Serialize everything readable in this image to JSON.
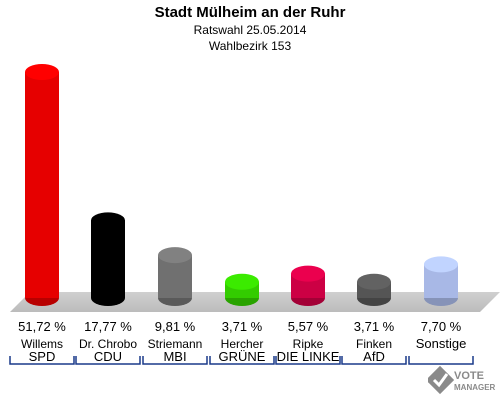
{
  "header": {
    "title": "Stadt Mülheim an der Ruhr",
    "subtitle": "Ratswahl 25.05.2014",
    "district": "Wahlbezirk 153"
  },
  "chart_data": {
    "type": "bar",
    "title": "Stadt Mülheim an der Ruhr",
    "subtitle": "Ratswahl 25.05.2014 · Wahlbezirk 153",
    "categories": [
      "SPD",
      "CDU",
      "MBI",
      "GRÜNE",
      "DIE LINKE",
      "AfD",
      "Sonstige"
    ],
    "candidates": [
      "Willems",
      "Dr. Chrobo",
      "Striemann",
      "Hercher",
      "Ripke",
      "Finken",
      ""
    ],
    "values": [
      51.72,
      17.77,
      9.81,
      3.71,
      5.57,
      3.71,
      7.7
    ],
    "value_labels": [
      "51,72 %",
      "17,77 %",
      "9,81 %",
      "3,71 %",
      "5,57 %",
      "3,71 %",
      "7,70 %"
    ],
    "colors": [
      "#e60000",
      "#000000",
      "#707070",
      "#33cc00",
      "#cc0044",
      "#555555",
      "#a8b8e6"
    ],
    "ylim": [
      0,
      55
    ],
    "grid": false,
    "legend": "none"
  },
  "logo": {
    "line1": "VOTE",
    "line2": "MANAGER"
  }
}
